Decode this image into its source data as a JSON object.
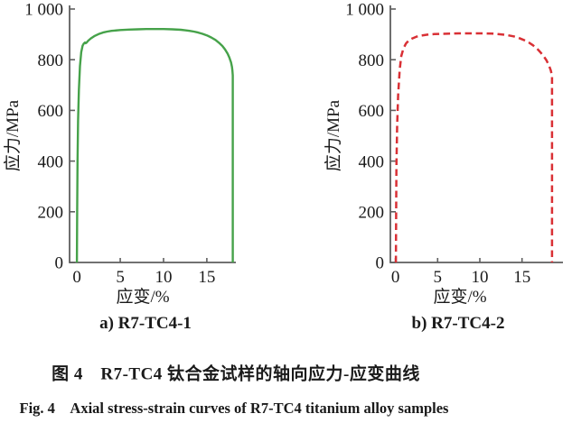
{
  "figure": {
    "caption_zh": "图 4　R7-TC4 钛合金试样的轴向应力-应变曲线",
    "caption_en": "Fig. 4　Axial stress-strain curves of R7-TC4 titanium alloy samples"
  },
  "colors": {
    "curve_a_green": "#46a24a",
    "curve_b_red": "#d93035",
    "axis_gray": "#5f5f5f",
    "text_black": "#1a1a1a"
  },
  "chart_data": [
    {
      "type": "line",
      "title": "a) R7-TC4-1",
      "xlabel": "应变/%",
      "ylabel": "应力/MPa",
      "xlim": [
        -0.85,
        18.35
      ],
      "ylim": [
        0,
        1000
      ],
      "x_ticks": [
        0,
        5,
        10,
        15
      ],
      "x_tick_labels": [
        "0",
        "5",
        "10",
        "15"
      ],
      "y_ticks": [
        0,
        200,
        400,
        600,
        800,
        1000
      ],
      "y_tick_labels": [
        "0",
        "200",
        "400",
        "600",
        "800",
        "1 000"
      ],
      "grid": false,
      "legend": "none",
      "series": [
        {
          "name": "R7-TC4-1",
          "color": "#46a24a",
          "style": "solid",
          "yield_stress_MPa": 868,
          "ultimate_stress_MPa": 921,
          "fracture_strain_pct": 18.0,
          "stress_at_fracture_MPa": 738,
          "points": [
            [
              0,
              0
            ],
            [
              0.03,
              200
            ],
            [
              0.07,
              400
            ],
            [
              0.13,
              560
            ],
            [
              0.22,
              680
            ],
            [
              0.35,
              775
            ],
            [
              0.5,
              830
            ],
            [
              0.65,
              855
            ],
            [
              0.8,
              864
            ],
            [
              0.92,
              868
            ],
            [
              1.0,
              865
            ],
            [
              1.1,
              867
            ],
            [
              1.3,
              875
            ],
            [
              1.6,
              884
            ],
            [
              2,
              893
            ],
            [
              2.5,
              901
            ],
            [
              3,
              907
            ],
            [
              3.5,
              911
            ],
            [
              4,
              914
            ],
            [
              5,
              917
            ],
            [
              6,
              919
            ],
            [
              7,
              920
            ],
            [
              8,
              921
            ],
            [
              9,
              921
            ],
            [
              10,
              921
            ],
            [
              11,
              920
            ],
            [
              12,
              918
            ],
            [
              12.5,
              916
            ],
            [
              13,
              914
            ],
            [
              13.5,
              911
            ],
            [
              14,
              907
            ],
            [
              14.5,
              902
            ],
            [
              15,
              896
            ],
            [
              15.5,
              888
            ],
            [
              16,
              878
            ],
            [
              16.4,
              867
            ],
            [
              16.8,
              854
            ],
            [
              17.1,
              841
            ],
            [
              17.4,
              824
            ],
            [
              17.6,
              809
            ],
            [
              17.8,
              789
            ],
            [
              17.9,
              772
            ],
            [
              17.95,
              757
            ],
            [
              18.0,
              738
            ],
            [
              18.0,
              0
            ]
          ]
        }
      ]
    },
    {
      "type": "line",
      "title": "b) R7-TC4-2",
      "xlabel": "应变/%",
      "ylabel": "应力/MPa",
      "xlim": [
        -0.6,
        19.85
      ],
      "ylim": [
        0,
        1000
      ],
      "x_ticks": [
        0,
        5,
        10,
        15
      ],
      "x_tick_labels": [
        "0",
        "5",
        "10",
        "15"
      ],
      "y_ticks": [
        0,
        200,
        400,
        600,
        800,
        1000
      ],
      "y_tick_labels": [
        "0",
        "200",
        "400",
        "600",
        "800",
        "1 000"
      ],
      "grid": false,
      "legend": "none",
      "series": [
        {
          "name": "R7-TC4-2",
          "color": "#d93035",
          "style": "dashed",
          "ultimate_stress_MPa": 904,
          "fracture_strain_pct": 18.55,
          "stress_at_fracture_MPa": 733,
          "points": [
            [
              0.05,
              0
            ],
            [
              0.08,
              200
            ],
            [
              0.12,
              380
            ],
            [
              0.2,
              540
            ],
            [
              0.32,
              660
            ],
            [
              0.5,
              760
            ],
            [
              0.7,
              815
            ],
            [
              0.95,
              845
            ],
            [
              1.25,
              864
            ],
            [
              1.6,
              876
            ],
            [
              2,
              884
            ],
            [
              2.5,
              891
            ],
            [
              3,
              895
            ],
            [
              3.8,
              899
            ],
            [
              4.6,
              901
            ],
            [
              5.5,
              902
            ],
            [
              6.5,
              903
            ],
            [
              7.5,
              904
            ],
            [
              9,
              904
            ],
            [
              10.5,
              904
            ],
            [
              11.5,
              903
            ],
            [
              12.5,
              900
            ],
            [
              13.2,
              897
            ],
            [
              14,
              892
            ],
            [
              14.6,
              886
            ],
            [
              15.2,
              878
            ],
            [
              15.8,
              868
            ],
            [
              16.3,
              857
            ],
            [
              16.8,
              843
            ],
            [
              17.2,
              829
            ],
            [
              17.6,
              812
            ],
            [
              17.9,
              797
            ],
            [
              18.2,
              777
            ],
            [
              18.4,
              758
            ],
            [
              18.5,
              745
            ],
            [
              18.55,
              733
            ],
            [
              18.55,
              0
            ]
          ]
        }
      ]
    }
  ]
}
